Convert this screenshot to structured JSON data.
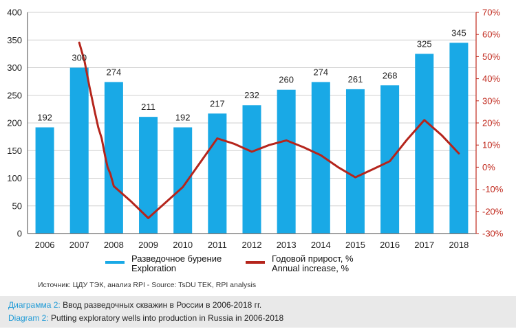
{
  "chart_data": {
    "type": "bar",
    "categories": [
      "2006",
      "2007",
      "2008",
      "2009",
      "2010",
      "2011",
      "2012",
      "2013",
      "2014",
      "2015",
      "2016",
      "2017",
      "2018"
    ],
    "series": [
      {
        "name": "Разведочное бурение / Exploration",
        "type": "bar",
        "axis": "left",
        "color": "#19a9e6",
        "values": [
          192,
          300,
          274,
          211,
          192,
          217,
          232,
          260,
          274,
          261,
          268,
          325,
          345
        ]
      },
      {
        "name": "Годовой прирост, % / Annual increase, %",
        "type": "line",
        "axis": "right",
        "color": "#b5251c",
        "x": [
          1,
          1.15,
          1.3,
          1.45,
          1.55,
          1.65,
          1.75,
          1.82,
          1.9,
          2,
          2.5,
          3,
          4,
          5,
          5.5,
          6,
          6.5,
          7,
          7.5,
          8,
          8.5,
          9,
          9.5,
          10,
          10.5,
          11,
          11.5,
          12
        ],
        "values": [
          56.3,
          48,
          36,
          25,
          18,
          13,
          5,
          0,
          -3,
          -8.6,
          -15.5,
          -23,
          -9,
          13,
          10.5,
          7,
          10,
          12.1,
          9,
          5.4,
          0,
          -4.6,
          -1,
          2.7,
          12.5,
          21.3,
          14.5,
          6.2
        ]
      }
    ],
    "left_axis": {
      "ylim": [
        0,
        400
      ],
      "ticks": [
        0,
        50,
        100,
        150,
        200,
        250,
        300,
        350,
        400
      ]
    },
    "right_axis": {
      "ylim": [
        -30,
        70
      ],
      "ticks": [
        -30,
        -20,
        -10,
        0,
        10,
        20,
        30,
        40,
        50,
        60,
        70
      ],
      "tick_labels": [
        "-30%",
        "-20%",
        "-10%",
        "0%",
        "10%",
        "20%",
        "30%",
        "40%",
        "50%",
        "60%",
        "70%"
      ]
    },
    "data_labels": [
      "192",
      "300",
      "274",
      "211",
      "192",
      "217",
      "232",
      "260",
      "274",
      "261",
      "268",
      "325",
      "345"
    ],
    "grid": "horizontal",
    "legend_position": "bottom"
  },
  "legend": {
    "bars_label": "Разведочное бурение",
    "bars_sublabel": "Exploration",
    "line_label": "Годовой прирост, %",
    "line_sublabel": "Annual increase, %"
  },
  "source": "Источник: ЦДУ ТЭК, анализ RPI - Source: TsDU TEK, RPI analysis",
  "caption": {
    "line1_prefix": "Диаграмма 2:",
    "line1_text": " Ввод разведочных скважин в России в 2006-2018 гг.",
    "line2_prefix": "Diagram 2:",
    "line2_text": " Putting exploratory wells into production in Russia in 2006-2018"
  }
}
